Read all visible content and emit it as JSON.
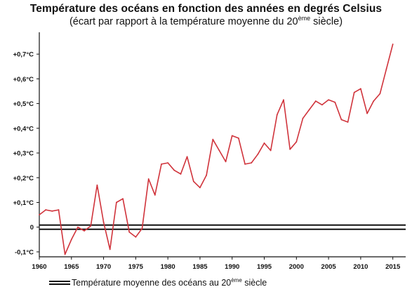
{
  "chart_data": {
    "type": "line",
    "title": "Température des océans en fonction des années en degrés Celsius",
    "subtitle_prefix": "(écart par rapport à la température moyenne du 20",
    "subtitle_sup": "ème",
    "subtitle_suffix": " siècle)",
    "xlabel": "",
    "ylabel": "",
    "xlim": [
      1960,
      2017
    ],
    "ylim": [
      -0.12,
      0.76
    ],
    "x_ticks": [
      1960,
      1965,
      1970,
      1975,
      1980,
      1985,
      1990,
      1995,
      2000,
      2005,
      2010,
      2015
    ],
    "y_ticks": [
      {
        "value": -0.1,
        "label": "-0,1°C"
      },
      {
        "value": 0.0,
        "label": "0"
      },
      {
        "value": 0.1,
        "label": "+0,1°C"
      },
      {
        "value": 0.2,
        "label": "+0,2°C"
      },
      {
        "value": 0.3,
        "label": "+0,3°C"
      },
      {
        "value": 0.4,
        "label": "+0,4°C"
      },
      {
        "value": 0.5,
        "label": "+0,5°C"
      },
      {
        "value": 0.6,
        "label": "+0,6°C"
      },
      {
        "value": 0.7,
        "label": "+0,7°C"
      }
    ],
    "grid": false,
    "series": [
      {
        "color": "#d0333b",
        "x": [
          1960,
          1961,
          1962,
          1963,
          1964,
          1965,
          1966,
          1967,
          1968,
          1969,
          1970,
          1971,
          1972,
          1973,
          1974,
          1975,
          1976,
          1977,
          1978,
          1979,
          1980,
          1981,
          1982,
          1983,
          1984,
          1985,
          1986,
          1987,
          1988,
          1989,
          1990,
          1991,
          1992,
          1993,
          1994,
          1995,
          1996,
          1997,
          1998,
          1999,
          2000,
          2001,
          2002,
          2003,
          2004,
          2005,
          2006,
          2007,
          2008,
          2009,
          2010,
          2011,
          2012,
          2013,
          2014,
          2015
        ],
        "values": [
          0.05,
          0.07,
          0.065,
          0.07,
          -0.11,
          -0.05,
          0.0,
          -0.015,
          0.005,
          0.17,
          0.02,
          -0.09,
          0.1,
          0.115,
          -0.02,
          -0.04,
          -0.005,
          0.195,
          0.13,
          0.255,
          0.26,
          0.23,
          0.215,
          0.285,
          0.185,
          0.16,
          0.21,
          0.355,
          0.31,
          0.265,
          0.37,
          0.36,
          0.255,
          0.26,
          0.295,
          0.34,
          0.31,
          0.455,
          0.515,
          0.315,
          0.345,
          0.44,
          0.475,
          0.51,
          0.495,
          0.515,
          0.505,
          0.435,
          0.425,
          0.545,
          0.56,
          0.46,
          0.51,
          0.54,
          0.64,
          0.74
        ]
      },
      {
        "name": "Température moyenne des océans au 20ème siècle",
        "color": "#111111",
        "x": [
          1960,
          2017
        ],
        "values": [
          0.0,
          0.0
        ]
      }
    ]
  },
  "legend": {
    "label_prefix": "Température moyenne des océans au 20",
    "label_sup": "ème",
    "label_suffix": " siècle"
  }
}
